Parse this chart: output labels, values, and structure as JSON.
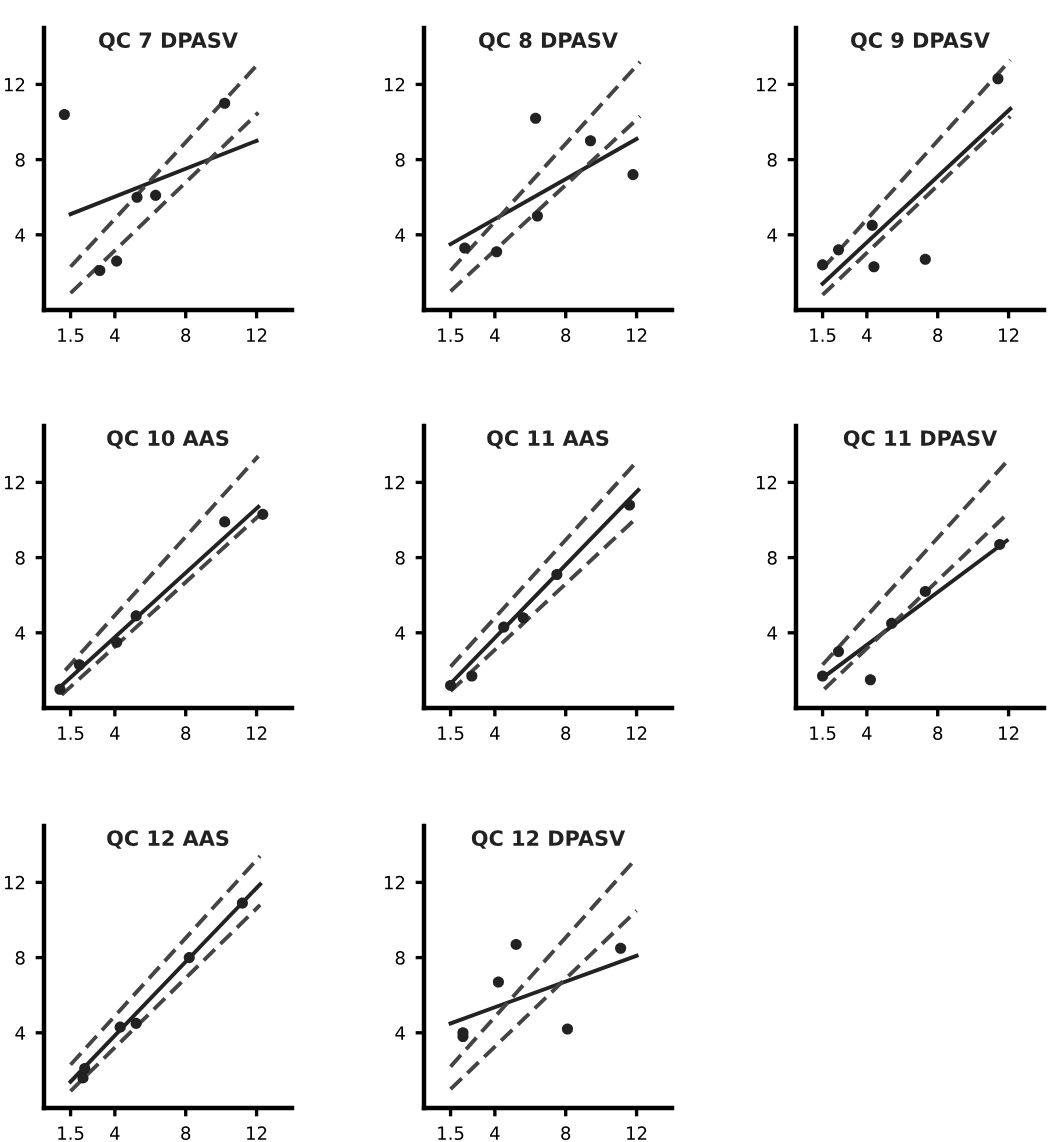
{
  "chart_data": [
    {
      "type": "scatter",
      "title": "QC 7 DPASV",
      "xlim": [
        0,
        14
      ],
      "ylim": [
        0,
        15
      ],
      "xticks": [
        1.5,
        4,
        8,
        12
      ],
      "yticks": [
        4,
        8,
        12
      ],
      "grid": false,
      "legend": false,
      "series": [
        {
          "type": "scatter",
          "color": "#222222",
          "marker": "circle",
          "x": [
            1.15,
            3.15,
            4.1,
            5.25,
            6.3,
            10.2
          ],
          "values": [
            10.4,
            2.1,
            2.6,
            6.0,
            6.1,
            11.0
          ]
        },
        {
          "type": "line",
          "color": "#222222",
          "line_style": "solid",
          "x": [
            1.5,
            12
          ],
          "values": [
            5.1,
            9.0
          ]
        },
        {
          "type": "line",
          "color": "#444444",
          "line_style": "dashed",
          "x": [
            1.5,
            12.1
          ],
          "values": [
            2.3,
            13.1
          ]
        },
        {
          "type": "line",
          "color": "#444444",
          "line_style": "dashed",
          "x": [
            1.5,
            12.1
          ],
          "values": [
            0.9,
            10.5
          ]
        }
      ]
    },
    {
      "type": "scatter",
      "title": "QC 8 DPASV",
      "xlim": [
        0,
        14
      ],
      "ylim": [
        0,
        15
      ],
      "xticks": [
        1.5,
        4,
        8,
        12
      ],
      "yticks": [
        4,
        8,
        12
      ],
      "grid": false,
      "legend": false,
      "series": [
        {
          "type": "scatter",
          "color": "#222222",
          "marker": "circle",
          "x": [
            2.3,
            4.1,
            6.4,
            6.3,
            9.4,
            11.8
          ],
          "values": [
            3.3,
            3.1,
            5.0,
            10.2,
            9.0,
            7.2
          ]
        },
        {
          "type": "line",
          "color": "#222222",
          "line_style": "solid",
          "x": [
            1.5,
            12
          ],
          "values": [
            3.5,
            9.1
          ]
        },
        {
          "type": "line",
          "color": "#444444",
          "line_style": "dashed",
          "x": [
            1.5,
            12.2
          ],
          "values": [
            2.1,
            13.2
          ]
        },
        {
          "type": "line",
          "color": "#444444",
          "line_style": "dashed",
          "x": [
            1.5,
            12.2
          ],
          "values": [
            1.0,
            10.3
          ]
        }
      ]
    },
    {
      "type": "scatter",
      "title": "QC 9 DPASV",
      "xlim": [
        0,
        14
      ],
      "ylim": [
        0,
        15
      ],
      "xticks": [
        1.5,
        4,
        8,
        12
      ],
      "yticks": [
        4,
        8,
        12
      ],
      "grid": false,
      "legend": false,
      "series": [
        {
          "type": "scatter",
          "color": "#222222",
          "marker": "circle",
          "x": [
            1.5,
            2.4,
            4.3,
            4.4,
            7.3,
            11.4
          ],
          "values": [
            2.4,
            3.2,
            4.5,
            2.3,
            2.7,
            12.3
          ]
        },
        {
          "type": "line",
          "color": "#222222",
          "line_style": "solid",
          "x": [
            1.5,
            12.1
          ],
          "values": [
            1.4,
            10.7
          ]
        },
        {
          "type": "line",
          "color": "#444444",
          "line_style": "dashed",
          "x": [
            1.5,
            12.1
          ],
          "values": [
            2.2,
            13.3
          ]
        },
        {
          "type": "line",
          "color": "#444444",
          "line_style": "dashed",
          "x": [
            1.5,
            12.1
          ],
          "values": [
            0.8,
            10.3
          ]
        }
      ]
    },
    {
      "type": "scatter",
      "title": "QC 10 AAS",
      "xlim": [
        0,
        14
      ],
      "ylim": [
        0,
        15
      ],
      "xticks": [
        1.5,
        4,
        8,
        12
      ],
      "yticks": [
        4,
        8,
        12
      ],
      "grid": false,
      "legend": false,
      "series": [
        {
          "type": "scatter",
          "color": "#222222",
          "marker": "circle",
          "x": [
            0.9,
            2.0,
            4.1,
            5.2,
            10.2,
            12.35
          ],
          "values": [
            1.0,
            2.3,
            3.5,
            4.9,
            9.9,
            10.3
          ]
        },
        {
          "type": "line",
          "color": "#222222",
          "line_style": "solid",
          "x": [
            1.0,
            12.1
          ],
          "values": [
            1.2,
            10.7
          ]
        },
        {
          "type": "line",
          "color": "#444444",
          "line_style": "dashed",
          "x": [
            1.2,
            12.1
          ],
          "values": [
            2.0,
            13.4
          ]
        },
        {
          "type": "line",
          "color": "#444444",
          "line_style": "dashed",
          "x": [
            1.0,
            12.1
          ],
          "values": [
            0.7,
            10.2
          ]
        }
      ]
    },
    {
      "type": "scatter",
      "title": "QC 11 AAS",
      "xlim": [
        0,
        14
      ],
      "ylim": [
        0,
        15
      ],
      "xticks": [
        1.5,
        4,
        8,
        12
      ],
      "yticks": [
        4,
        8,
        12
      ],
      "grid": false,
      "legend": false,
      "series": [
        {
          "type": "scatter",
          "color": "#222222",
          "marker": "circle",
          "x": [
            1.5,
            2.7,
            4.5,
            5.6,
            7.5,
            11.6
          ],
          "values": [
            1.2,
            1.7,
            4.3,
            4.8,
            7.1,
            10.8
          ]
        },
        {
          "type": "line",
          "color": "#222222",
          "line_style": "solid",
          "x": [
            1.5,
            12.1
          ],
          "values": [
            1.3,
            11.6
          ]
        },
        {
          "type": "line",
          "color": "#444444",
          "line_style": "dashed",
          "x": [
            1.5,
            12.1
          ],
          "values": [
            2.2,
            13.2
          ]
        },
        {
          "type": "line",
          "color": "#444444",
          "line_style": "dashed",
          "x": [
            1.5,
            12.1
          ],
          "values": [
            0.9,
            10.2
          ]
        }
      ]
    },
    {
      "type": "scatter",
      "title": "QC 11 DPASV",
      "xlim": [
        0,
        14
      ],
      "ylim": [
        0,
        15
      ],
      "xticks": [
        1.5,
        4,
        8,
        12
      ],
      "yticks": [
        4,
        8,
        12
      ],
      "grid": false,
      "legend": false,
      "series": [
        {
          "type": "scatter",
          "color": "#222222",
          "marker": "circle",
          "x": [
            1.5,
            2.4,
            4.2,
            5.4,
            7.3,
            11.5
          ],
          "values": [
            1.7,
            3.0,
            1.5,
            4.5,
            6.2,
            8.7
          ]
        },
        {
          "type": "line",
          "color": "#222222",
          "line_style": "solid",
          "x": [
            1.5,
            11.9
          ],
          "values": [
            1.6,
            8.9
          ]
        },
        {
          "type": "line",
          "color": "#444444",
          "line_style": "dashed",
          "x": [
            1.5,
            11.9
          ],
          "values": [
            2.3,
            13.1
          ]
        },
        {
          "type": "line",
          "color": "#444444",
          "line_style": "dashed",
          "x": [
            1.6,
            11.9
          ],
          "values": [
            1.0,
            10.3
          ]
        }
      ]
    },
    {
      "type": "scatter",
      "title": "QC 12 AAS",
      "xlim": [
        0,
        14
      ],
      "ylim": [
        0,
        15
      ],
      "xticks": [
        1.5,
        4,
        8,
        12
      ],
      "yticks": [
        4,
        8,
        12
      ],
      "grid": false,
      "legend": false,
      "series": [
        {
          "type": "scatter",
          "color": "#222222",
          "marker": "circle",
          "x": [
            2.2,
            2.3,
            4.3,
            5.2,
            8.2,
            11.2
          ],
          "values": [
            1.6,
            2.1,
            4.3,
            4.5,
            8.0,
            10.9
          ]
        },
        {
          "type": "line",
          "color": "#222222",
          "line_style": "solid",
          "x": [
            1.5,
            12.2
          ],
          "values": [
            1.4,
            11.9
          ]
        },
        {
          "type": "line",
          "color": "#444444",
          "line_style": "dashed",
          "x": [
            1.5,
            12.2
          ],
          "values": [
            2.3,
            13.4
          ]
        },
        {
          "type": "line",
          "color": "#444444",
          "line_style": "dashed",
          "x": [
            1.5,
            12.2
          ],
          "values": [
            0.9,
            10.8
          ]
        }
      ]
    },
    {
      "type": "scatter",
      "title": "QC 12 DPASV",
      "xlim": [
        0,
        14
      ],
      "ylim": [
        0,
        15
      ],
      "xticks": [
        1.5,
        4,
        8,
        12
      ],
      "yticks": [
        4,
        8,
        12
      ],
      "grid": false,
      "legend": false,
      "series": [
        {
          "type": "scatter",
          "color": "#222222",
          "marker": "circle",
          "x": [
            2.2,
            2.2,
            4.2,
            5.2,
            8.1,
            11.1
          ],
          "values": [
            3.8,
            4.0,
            6.7,
            8.7,
            4.2,
            8.5
          ]
        },
        {
          "type": "line",
          "color": "#222222",
          "line_style": "solid",
          "x": [
            1.5,
            12.0
          ],
          "values": [
            4.5,
            8.1
          ]
        },
        {
          "type": "line",
          "color": "#444444",
          "line_style": "dashed",
          "x": [
            1.5,
            12.0
          ],
          "values": [
            2.2,
            13.3
          ]
        },
        {
          "type": "line",
          "color": "#444444",
          "line_style": "dashed",
          "x": [
            1.5,
            12.0
          ],
          "values": [
            1.0,
            10.5
          ]
        }
      ]
    }
  ]
}
